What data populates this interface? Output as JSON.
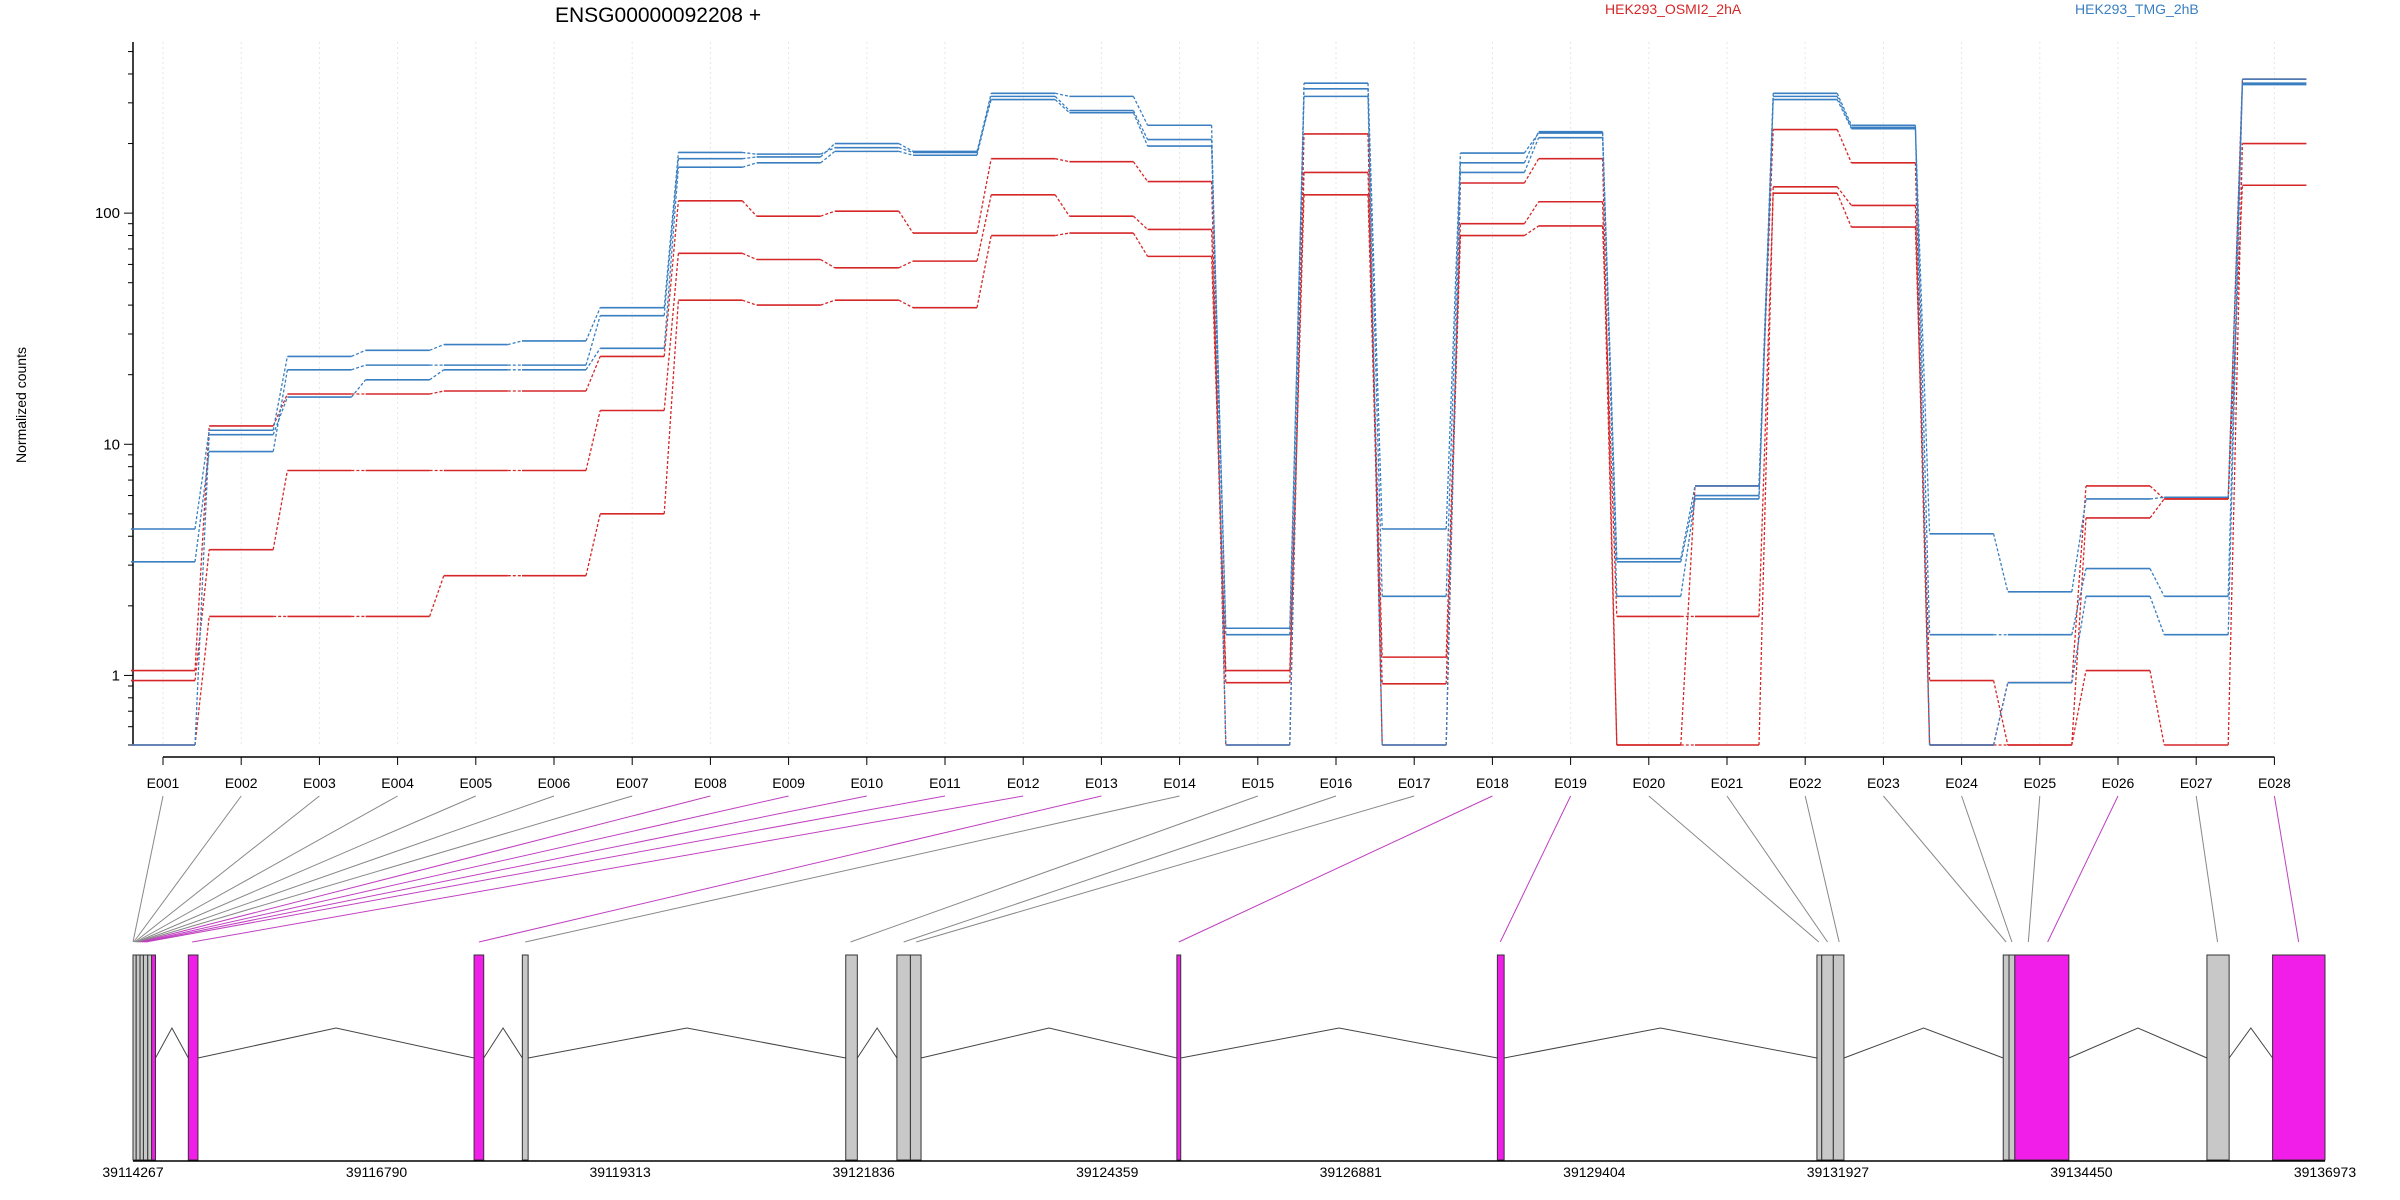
{
  "chart_data": {
    "type": "line",
    "title": "ENSG00000092208 +",
    "ylabel": "Normalized counts",
    "yscale": "log",
    "ylim": [
      0.5,
      550
    ],
    "ytick_values": [
      1,
      10,
      100
    ],
    "ytick_labels": [
      "1",
      "10",
      "100"
    ],
    "categories": [
      "E001",
      "E002",
      "E003",
      "E004",
      "E005",
      "E006",
      "E007",
      "E008",
      "E009",
      "E010",
      "E011",
      "E012",
      "E013",
      "E014",
      "E015",
      "E016",
      "E017",
      "E018",
      "E019",
      "E020",
      "E021",
      "E022",
      "E023",
      "E024",
      "E025",
      "E026",
      "E027",
      "E028"
    ],
    "legend": [
      {
        "name": "HEK293_OSMI2_2hA",
        "color": "#d62728"
      },
      {
        "name": "HEK293_TMG_2hB",
        "color": "#3a7fc1"
      }
    ],
    "series": [
      {
        "group": "HEK293_OSMI2_2hA",
        "values": [
          0.5,
          1.8,
          1.8,
          1.8,
          2.7,
          2.7,
          5,
          42,
          40,
          42,
          39,
          80,
          82,
          65,
          1.05,
          150,
          1.2,
          90,
          112,
          0.5,
          0.5,
          130,
          108,
          0.5,
          0.5,
          1.05,
          0.5,
          200
        ]
      },
      {
        "group": "HEK293_OSMI2_2hA",
        "values": [
          0.95,
          3.5,
          7.7,
          7.7,
          7.7,
          7.7,
          14,
          67,
          63,
          58,
          62,
          120,
          97,
          85,
          0.93,
          120,
          0.92,
          80,
          88,
          1.8,
          1.8,
          122,
          87,
          0.95,
          0.5,
          4.8,
          5.8,
          132
        ]
      },
      {
        "group": "HEK293_OSMI2_2hA",
        "values": [
          1.05,
          12,
          16.5,
          16.5,
          17,
          17,
          24,
          113,
          97,
          102,
          82,
          172,
          167,
          137,
          0.5,
          220,
          0.5,
          135,
          172,
          0.5,
          6.6,
          230,
          165,
          0.5,
          0.93,
          6.6,
          5.8,
          380
        ]
      },
      {
        "group": "HEK293_TMG_2hB",
        "values": [
          0.5,
          11,
          16,
          19,
          21,
          21,
          26,
          158,
          165,
          185,
          178,
          320,
          278,
          208,
          1.6,
          320,
          0.5,
          150,
          212,
          3.1,
          6,
          320,
          235,
          0.5,
          0.93,
          2.2,
          1.5,
          365
        ]
      },
      {
        "group": "HEK293_TMG_2hB",
        "values": [
          3.1,
          9.3,
          21,
          22,
          22,
          22,
          36,
          172,
          175,
          200,
          185,
          310,
          272,
          195,
          1.5,
          345,
          2.2,
          165,
          225,
          3.2,
          6.6,
          330,
          240,
          1.5,
          1.5,
          2.9,
          2.2,
          380
        ]
      },
      {
        "group": "HEK293_TMG_2hB",
        "values": [
          4.3,
          11.5,
          24,
          25.5,
          27,
          28,
          39,
          183,
          180,
          192,
          183,
          330,
          320,
          240,
          0.5,
          365,
          4.3,
          182,
          222,
          2.2,
          5.8,
          310,
          232,
          4.1,
          2.3,
          5.8,
          5.9,
          360
        ]
      }
    ],
    "gene_model": {
      "coord_ticks": [
        "39114267",
        "39116790",
        "39119313",
        "39121836",
        "39124359",
        "39126881",
        "39129404",
        "39131927",
        "39134450",
        "39136973"
      ],
      "coord_range": [
        39114267,
        39136973
      ],
      "exons": [
        {
          "id": "E001",
          "start": 39114267,
          "end": 39114300,
          "color": "#c8c8c8"
        },
        {
          "id": "E002",
          "start": 39114300,
          "end": 39114340,
          "color": "#c8c8c8"
        },
        {
          "id": "E003",
          "start": 39114340,
          "end": 39114375,
          "color": "#c8c8c8"
        },
        {
          "id": "E004",
          "start": 39114375,
          "end": 39114420,
          "color": "#c8c8c8"
        },
        {
          "id": "E005",
          "start": 39114420,
          "end": 39114460,
          "color": "#c8c8c8"
        },
        {
          "id": "E006",
          "start": 39114460,
          "end": 39114500,
          "color": "#f01ee8"
        },
        {
          "id": "E007",
          "start": 39114840,
          "end": 39114940,
          "color": "#f01ee8"
        },
        {
          "id": "E008",
          "start": 39117800,
          "end": 39117900,
          "color": "#f01ee8"
        },
        {
          "id": "E009",
          "start": 39118300,
          "end": 39118360,
          "color": "#c8c8c8"
        },
        {
          "id": "E010",
          "start": 39121650,
          "end": 39121770,
          "color": "#c8c8c8"
        },
        {
          "id": "E011",
          "start": 39122180,
          "end": 39122320,
          "color": "#c8c8c8"
        },
        {
          "id": "E012",
          "start": 39122320,
          "end": 39122430,
          "color": "#c8c8c8"
        },
        {
          "id": "E013",
          "start": 39125080,
          "end": 39125120,
          "color": "#f01ee8"
        },
        {
          "id": "E014",
          "start": 39128400,
          "end": 39128470,
          "color": "#f01ee8"
        },
        {
          "id": "E015",
          "start": 39131710,
          "end": 39131760,
          "color": "#c8c8c8"
        },
        {
          "id": "E016",
          "start": 39131760,
          "end": 39131880,
          "color": "#c8c8c8"
        },
        {
          "id": "E017",
          "start": 39131880,
          "end": 39131990,
          "color": "#c8c8c8"
        },
        {
          "id": "E018",
          "start": 39133640,
          "end": 39133700,
          "color": "#c8c8c8"
        },
        {
          "id": "E019",
          "start": 39133700,
          "end": 39133760,
          "color": "#c8c8c8"
        },
        {
          "id": "E020",
          "start": 39133760,
          "end": 39134320,
          "color": "#f01ee8"
        },
        {
          "id": "E021",
          "start": 39135750,
          "end": 39135980,
          "color": "#c8c8c8"
        },
        {
          "id": "E022",
          "start": 39136430,
          "end": 39136973,
          "color": "#f01ee8"
        }
      ],
      "connectors": [
        {
          "label_index": 0,
          "coord": 39114267,
          "color": "#888888"
        },
        {
          "label_index": 1,
          "coord": 39114275,
          "color": "#888888"
        },
        {
          "label_index": 2,
          "coord": 39114285,
          "color": "#888888"
        },
        {
          "label_index": 3,
          "coord": 39114295,
          "color": "#888888"
        },
        {
          "label_index": 4,
          "coord": 39114305,
          "color": "#888888"
        },
        {
          "label_index": 5,
          "coord": 39114315,
          "color": "#888888"
        },
        {
          "label_index": 6,
          "coord": 39114325,
          "color": "#888888"
        },
        {
          "label_index": 7,
          "coord": 39114340,
          "color": "#c040c0"
        },
        {
          "label_index": 8,
          "coord": 39114360,
          "color": "#c040c0"
        },
        {
          "label_index": 9,
          "coord": 39114380,
          "color": "#c040c0"
        },
        {
          "label_index": 10,
          "coord": 39114400,
          "color": "#c040c0"
        },
        {
          "label_index": 11,
          "coord": 39114880,
          "color": "#c040c0"
        },
        {
          "label_index": 12,
          "coord": 39117850,
          "color": "#c040c0"
        },
        {
          "label_index": 13,
          "coord": 39118330,
          "color": "#888888"
        },
        {
          "label_index": 14,
          "coord": 39121700,
          "color": "#888888"
        },
        {
          "label_index": 15,
          "coord": 39122250,
          "color": "#888888"
        },
        {
          "label_index": 16,
          "coord": 39122380,
          "color": "#888888"
        },
        {
          "label_index": 17,
          "coord": 39125100,
          "color": "#c040c0"
        },
        {
          "label_index": 18,
          "coord": 39128430,
          "color": "#c040c0"
        },
        {
          "label_index": 19,
          "coord": 39131730,
          "color": "#888888"
        },
        {
          "label_index": 20,
          "coord": 39131820,
          "color": "#888888"
        },
        {
          "label_index": 21,
          "coord": 39131940,
          "color": "#888888"
        },
        {
          "label_index": 22,
          "coord": 39133670,
          "color": "#888888"
        },
        {
          "label_index": 23,
          "coord": 39133730,
          "color": "#888888"
        },
        {
          "label_index": 24,
          "coord": 39133900,
          "color": "#888888"
        },
        {
          "label_index": 25,
          "coord": 39134100,
          "color": "#c040c0"
        },
        {
          "label_index": 26,
          "coord": 39135860,
          "color": "#888888"
        },
        {
          "label_index": 27,
          "coord": 39136700,
          "color": "#c040c0"
        }
      ]
    }
  }
}
